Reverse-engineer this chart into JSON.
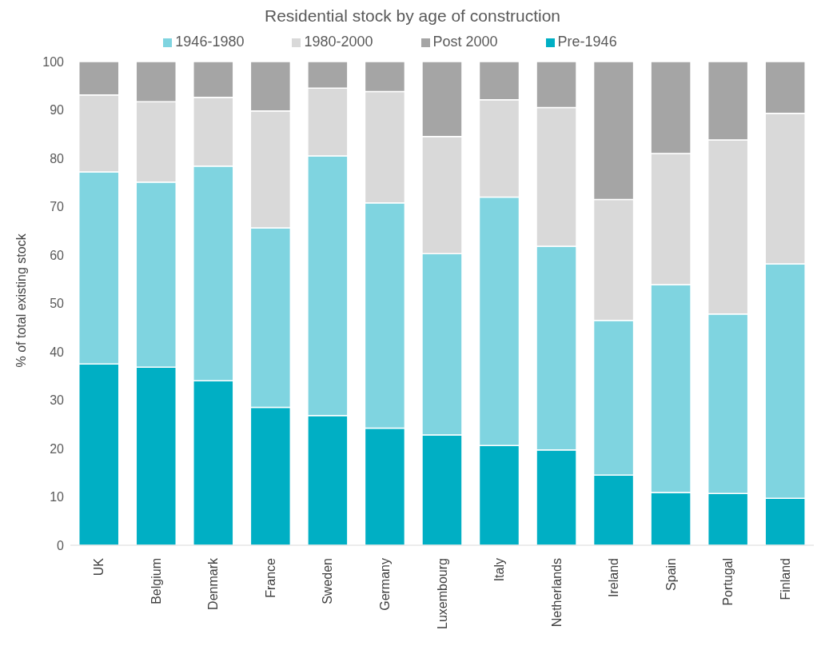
{
  "chart_data": {
    "type": "bar",
    "title": "Residential stock by age of construction",
    "ylabel": "% of total existing stock",
    "categories": [
      "UK",
      "Belgium",
      "Denmark",
      "France",
      "Sweden",
      "Germany",
      "Luxembourg",
      "Italy",
      "Netherlands",
      "Ireland",
      "Spain",
      "Portugal",
      "Finland"
    ],
    "stacked": true,
    "ylim": [
      0,
      100
    ],
    "yticks": [
      0,
      10,
      20,
      30,
      40,
      50,
      60,
      70,
      80,
      90,
      100
    ],
    "grid": false,
    "legend": "top",
    "series": [
      {
        "name": "Pre-1946",
        "color": "#00afc4",
        "values": [
          37.5,
          36.8,
          34.0,
          28.5,
          26.8,
          24.2,
          22.8,
          20.6,
          19.7,
          14.5,
          10.9,
          10.7,
          9.7
        ]
      },
      {
        "name": "1946-1980",
        "color": "#7fd4e0",
        "values": [
          39.7,
          38.3,
          44.4,
          37.1,
          53.7,
          46.6,
          37.5,
          51.4,
          42.1,
          32.0,
          43.0,
          37.1,
          48.5
        ]
      },
      {
        "name": "1980-2000",
        "color": "#d9d9d9",
        "values": [
          15.9,
          16.6,
          14.2,
          24.2,
          14.0,
          23.0,
          24.2,
          20.1,
          28.7,
          25.0,
          27.1,
          36.0,
          31.1
        ]
      },
      {
        "name": "Post 2000",
        "color": "#a5a5a5",
        "values": [
          6.9,
          8.3,
          7.4,
          10.2,
          5.5,
          6.2,
          15.5,
          7.9,
          9.5,
          28.5,
          19.0,
          16.2,
          10.7
        ]
      }
    ]
  }
}
